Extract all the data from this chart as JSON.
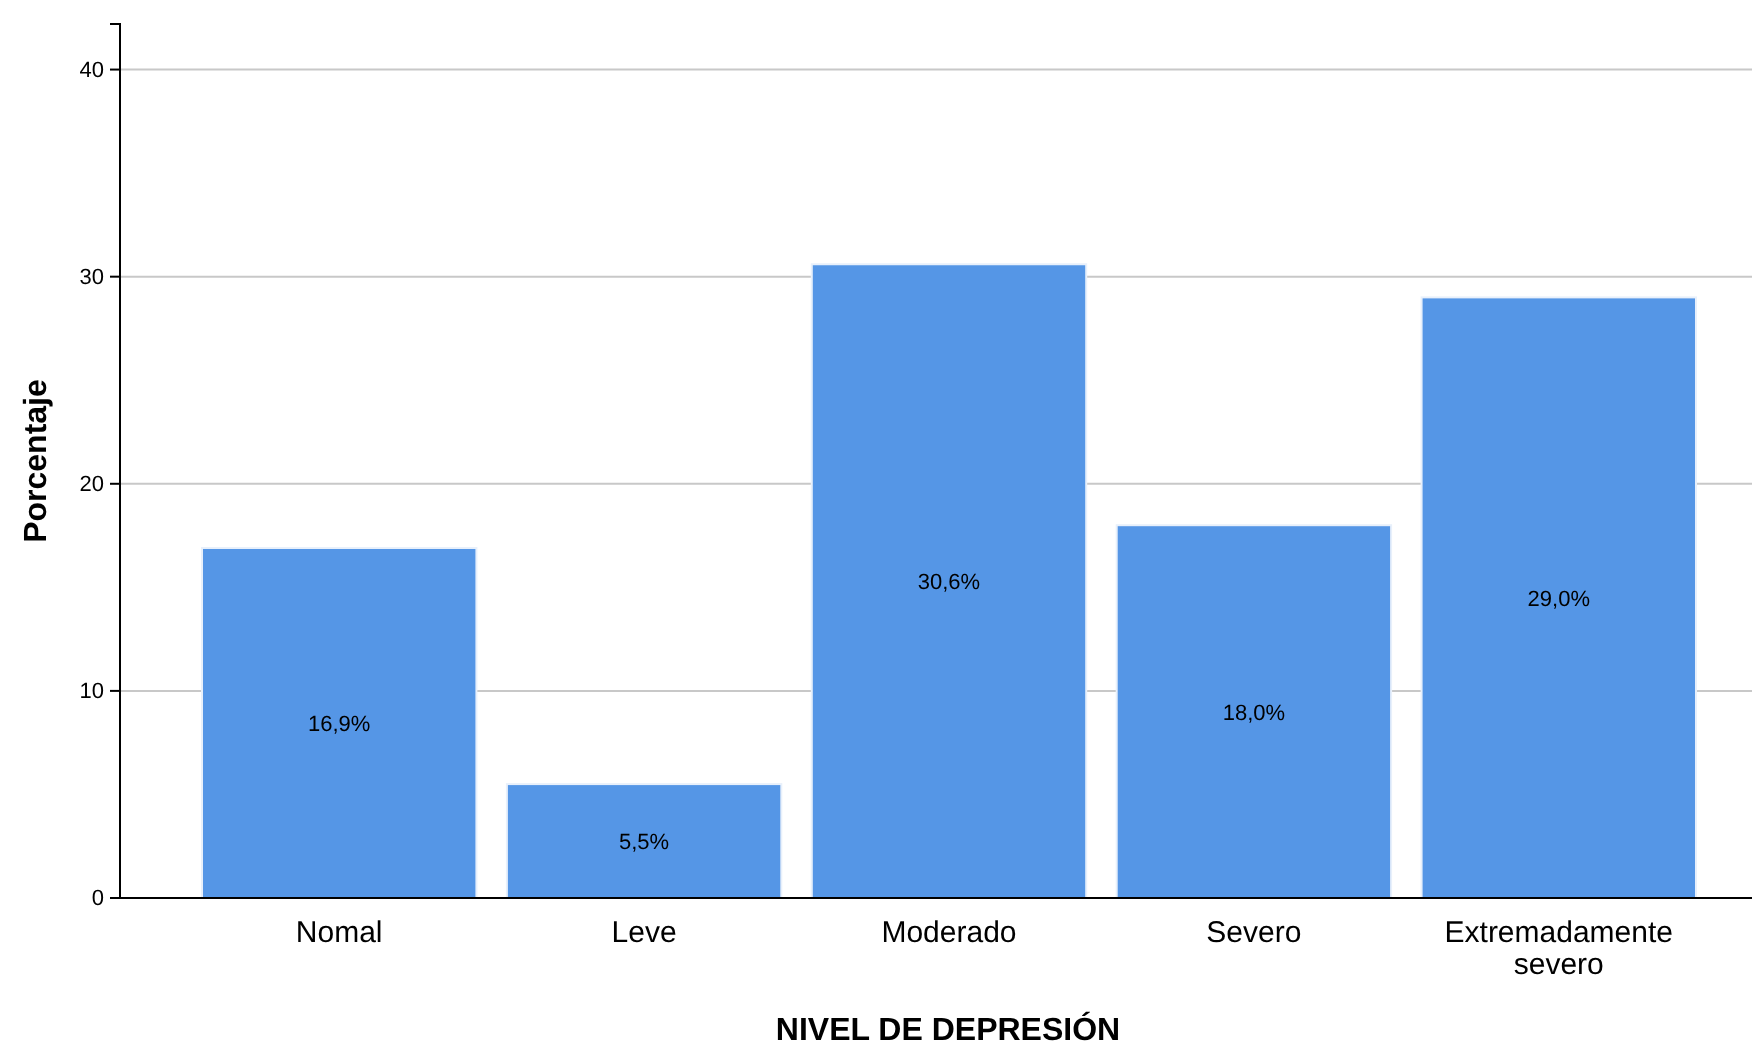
{
  "chart_data": {
    "type": "bar",
    "xlabel": "NIVEL DE DEPRESIÓN",
    "ylabel": "Porcentaje",
    "categories": [
      "Nomal",
      "Leve",
      "Moderado",
      "Severo",
      "Extremadamente severo"
    ],
    "values": [
      16.9,
      5.5,
      30.6,
      18.0,
      29.0
    ],
    "value_labels": [
      "16,9%",
      "5,5%",
      "30,6%",
      "18,0%",
      "29,0%"
    ],
    "color": "#5596e6",
    "ylim": [
      0,
      42.2
    ],
    "yticks": [
      0,
      10,
      20,
      30,
      40
    ],
    "grid": "y"
  }
}
